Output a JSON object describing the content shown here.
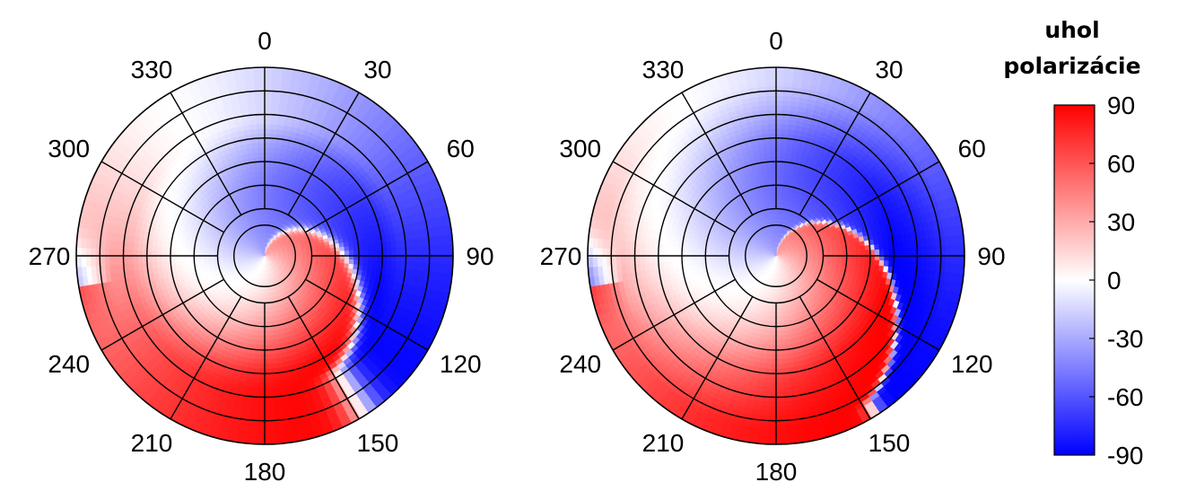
{
  "chart_data": {
    "type": "heatmap",
    "subtype": "polar-heatmap",
    "panels": [
      {
        "name": "",
        "angular_ticks": [
          "0",
          "30",
          "60",
          "90",
          "120",
          "150",
          "180",
          "210",
          "240",
          "270",
          "300",
          "330"
        ],
        "radial_rings": 7,
        "pattern": {
          "boundary_max_r": 0.72,
          "boundary_angle_offset_deg": 8,
          "boundary_sharpness": 0.12,
          "outer_wrap_strength": 0.55
        }
      },
      {
        "name": "",
        "angular_ticks": [
          "0",
          "30",
          "60",
          "90",
          "120",
          "150",
          "180",
          "210",
          "240",
          "270",
          "300",
          "330"
        ],
        "radial_rings": 7,
        "pattern": {
          "boundary_max_r": 0.92,
          "boundary_angle_offset_deg": 8,
          "boundary_sharpness": 0.05,
          "outer_wrap_strength": 0.75
        }
      }
    ],
    "colorbar": {
      "title_lines": [
        "uhol",
        "polarizácie"
      ],
      "ticks": [
        "90",
        "60",
        "30",
        "0",
        "-30",
        "-60",
        "-90"
      ],
      "range": [
        -90,
        90
      ],
      "colors": {
        "min": "#0000ff",
        "mid": "#ffffff",
        "max": "#ff0000"
      }
    }
  }
}
